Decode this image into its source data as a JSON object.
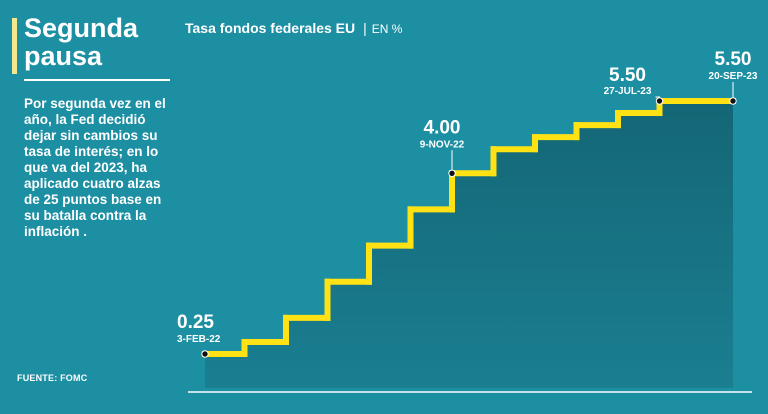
{
  "sidebar": {
    "headline": "Segunda pausa",
    "summary": "Por segunda vez en el año, la Fed decidió dejar sin cambios su tasa de interés; en lo que va del 2023, ha aplicado cuatro alzas de 25 puntos base en su batalla contra la inflación .",
    "source": "FUENTE: FOMC"
  },
  "colors": {
    "background": "#1d8fa3",
    "area_fill": "#146675",
    "line": "#ffe214",
    "accent": "#f3e88f"
  },
  "chart_data": {
    "type": "area",
    "title": "Tasa fondos federales EU",
    "unit": "EN %",
    "series": [
      {
        "values": [
          0.25,
          0.5,
          1.0,
          1.75,
          2.5,
          3.25,
          4.0,
          4.5,
          4.75,
          5.0,
          5.25,
          5.5,
          5.5
        ]
      }
    ],
    "annotations": [
      {
        "index": 0,
        "value": "0.25",
        "date": "3-FEB-22"
      },
      {
        "index": 6,
        "value": "4.00",
        "date": "9-NOV-22"
      },
      {
        "index": 11,
        "value": "5.50",
        "date": "27-JUL-23"
      },
      {
        "index": 12,
        "value": "5.50",
        "date": "20-SEP-23"
      }
    ],
    "grid": false,
    "legend": "none"
  }
}
